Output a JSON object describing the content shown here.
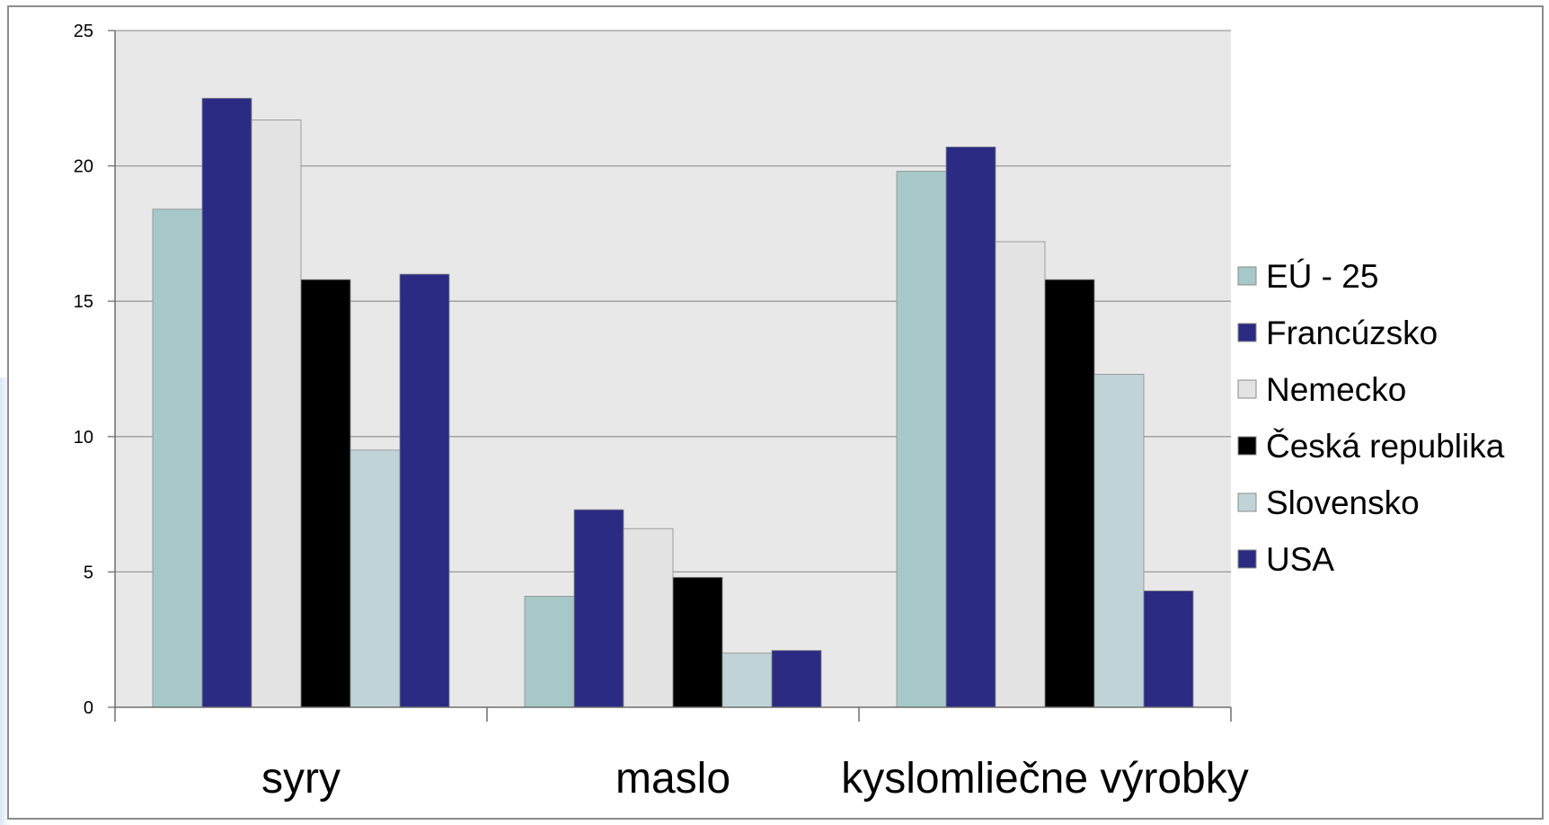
{
  "chart_data": {
    "type": "bar",
    "categories": [
      "syry",
      "maslo",
      "kyslomliečne výrobky"
    ],
    "series": [
      {
        "name": "EÚ - 25",
        "color": "#a6c8c8",
        "values": [
          18.4,
          4.1,
          19.8
        ]
      },
      {
        "name": "Francúzsko",
        "color": "#2b2b83",
        "values": [
          22.5,
          7.3,
          20.7
        ]
      },
      {
        "name": "Nemecko",
        "color": "#e3e3e3",
        "values": [
          21.7,
          6.6,
          17.2
        ]
      },
      {
        "name": "Česká republika",
        "color": "#000000",
        "values": [
          15.8,
          4.8,
          15.8
        ]
      },
      {
        "name": "Slovensko",
        "color": "#c0d4d8",
        "values": [
          9.5,
          2.0,
          12.3
        ]
      },
      {
        "name": "USA",
        "color": "#2b2b83",
        "values": [
          16.0,
          2.1,
          4.3
        ]
      }
    ],
    "yticks": [
      "0",
      "5",
      "10",
      "15",
      "20",
      "25"
    ],
    "ylim": [
      0,
      25
    ],
    "title": "",
    "xlabel": "",
    "ylabel": "",
    "grid": true,
    "legend_position": "right",
    "plot_background": "#e8e8e8"
  }
}
